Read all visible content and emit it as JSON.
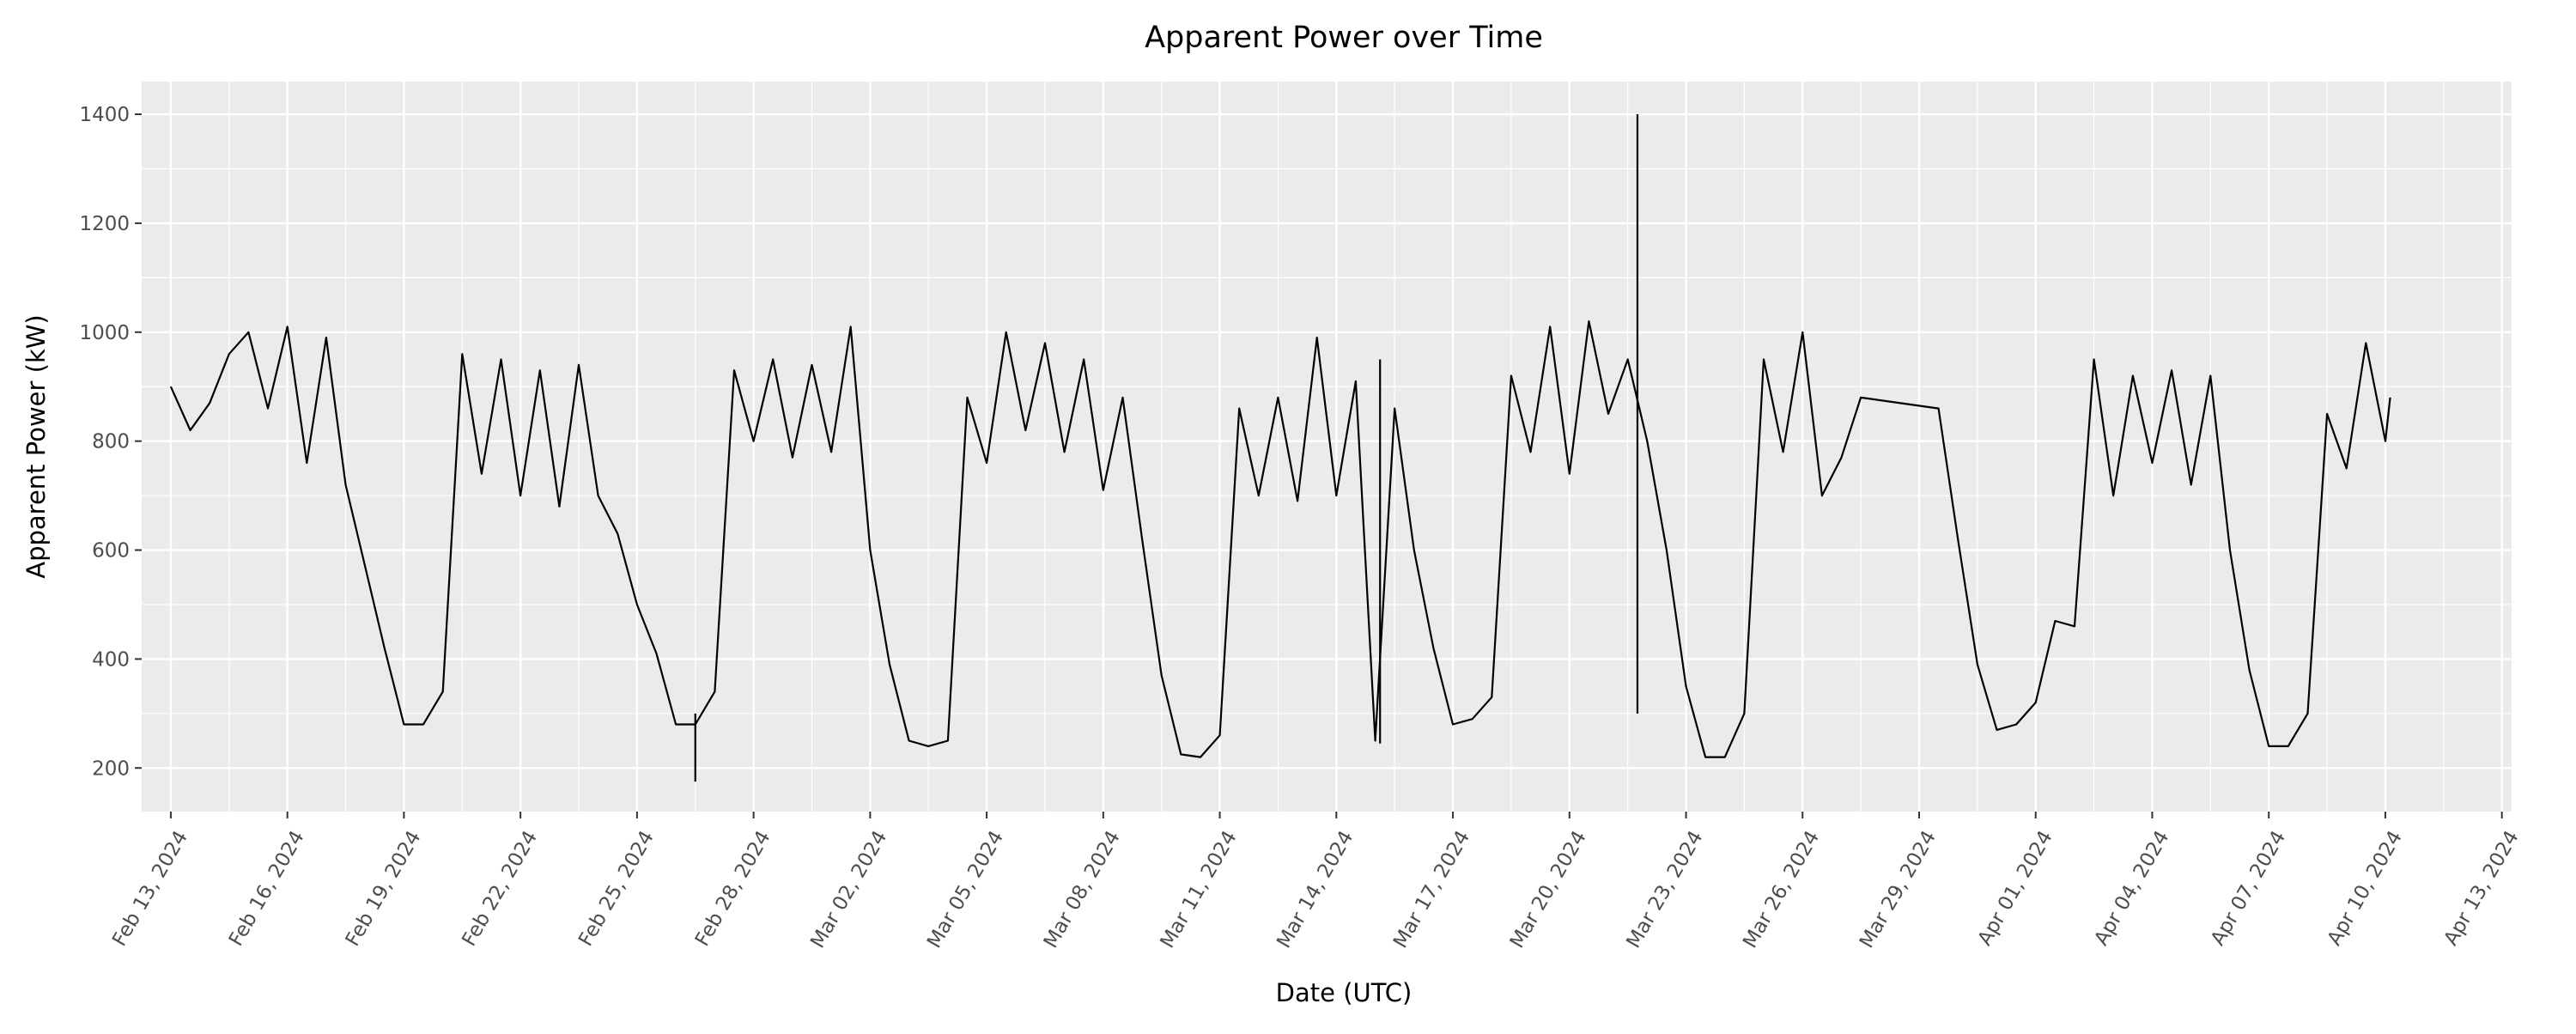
{
  "chart_data": {
    "type": "line",
    "title": "Apparent Power over Time",
    "xlabel": "Date (UTC)",
    "ylabel": "Apparent Power (kW)",
    "x_type": "date",
    "xlim": [
      "2024-02-12T06:00:00Z",
      "2024-04-13T06:00:00Z"
    ],
    "ylim": [
      120,
      1460
    ],
    "x_ticks": [
      {
        "date": "2024-02-13",
        "label": "Feb 13, 2024"
      },
      {
        "date": "2024-02-16",
        "label": "Feb 16, 2024"
      },
      {
        "date": "2024-02-19",
        "label": "Feb 19, 2024"
      },
      {
        "date": "2024-02-22",
        "label": "Feb 22, 2024"
      },
      {
        "date": "2024-02-25",
        "label": "Feb 25, 2024"
      },
      {
        "date": "2024-02-28",
        "label": "Feb 28, 2024"
      },
      {
        "date": "2024-03-02",
        "label": "Mar 02, 2024"
      },
      {
        "date": "2024-03-05",
        "label": "Mar 05, 2024"
      },
      {
        "date": "2024-03-08",
        "label": "Mar 08, 2024"
      },
      {
        "date": "2024-03-11",
        "label": "Mar 11, 2024"
      },
      {
        "date": "2024-03-14",
        "label": "Mar 14, 2024"
      },
      {
        "date": "2024-03-17",
        "label": "Mar 17, 2024"
      },
      {
        "date": "2024-03-20",
        "label": "Mar 20, 2024"
      },
      {
        "date": "2024-03-23",
        "label": "Mar 23, 2024"
      },
      {
        "date": "2024-03-26",
        "label": "Mar 26, 2024"
      },
      {
        "date": "2024-03-29",
        "label": "Mar 29, 2024"
      },
      {
        "date": "2024-04-01",
        "label": "Apr 01, 2024"
      },
      {
        "date": "2024-04-04",
        "label": "Apr 04, 2024"
      },
      {
        "date": "2024-04-07",
        "label": "Apr 07, 2024"
      },
      {
        "date": "2024-04-10",
        "label": "Apr 10, 2024"
      },
      {
        "date": "2024-04-13",
        "label": "Apr 13, 2024"
      }
    ],
    "y_ticks": [
      200,
      400,
      600,
      800,
      1000,
      1200,
      1400
    ],
    "grid": true,
    "legend": "none",
    "line_color": "#000000",
    "panel_background": "#ebebeb",
    "grid_color": "#ffffff",
    "series": [
      {
        "x": [
          "2024-02-13T00:00:00Z",
          "2024-02-13T12:00:00Z",
          "2024-02-14T00:00:00Z",
          "2024-02-14T12:00:00Z",
          "2024-02-15T00:00:00Z",
          "2024-02-15T12:00:00Z",
          "2024-02-16T00:00:00Z",
          "2024-02-16T12:00:00Z",
          "2024-02-17T00:00:00Z",
          "2024-02-17T12:00:00Z",
          "2024-02-18T00:00:00Z",
          "2024-02-18T12:00:00Z",
          "2024-02-19T00:00:00Z",
          "2024-02-19T12:00:00Z",
          "2024-02-20T00:00:00Z",
          "2024-02-20T12:00:00Z",
          "2024-02-21T00:00:00Z",
          "2024-02-21T12:00:00Z",
          "2024-02-22T00:00:00Z",
          "2024-02-22T12:00:00Z",
          "2024-02-23T00:00:00Z",
          "2024-02-23T12:00:00Z",
          "2024-02-24T00:00:00Z",
          "2024-02-24T12:00:00Z",
          "2024-02-25T00:00:00Z",
          "2024-02-25T12:00:00Z",
          "2024-02-26T00:00:00Z",
          "2024-02-26T12:00:00Z",
          "2024-02-27T00:00:00Z",
          "2024-02-27T12:00:00Z",
          "2024-02-28T00:00:00Z",
          "2024-02-28T12:00:00Z",
          "2024-02-29T00:00:00Z",
          "2024-02-29T12:00:00Z",
          "2024-03-01T00:00:00Z",
          "2024-03-01T12:00:00Z",
          "2024-03-02T00:00:00Z",
          "2024-03-02T12:00:00Z",
          "2024-03-03T00:00:00Z",
          "2024-03-03T12:00:00Z",
          "2024-03-04T00:00:00Z",
          "2024-03-04T12:00:00Z",
          "2024-03-05T00:00:00Z",
          "2024-03-05T12:00:00Z",
          "2024-03-06T00:00:00Z",
          "2024-03-06T12:00:00Z",
          "2024-03-07T00:00:00Z",
          "2024-03-07T12:00:00Z",
          "2024-03-08T00:00:00Z",
          "2024-03-08T12:00:00Z",
          "2024-03-09T00:00:00Z",
          "2024-03-09T12:00:00Z",
          "2024-03-10T00:00:00Z",
          "2024-03-10T12:00:00Z",
          "2024-03-11T00:00:00Z",
          "2024-03-11T12:00:00Z",
          "2024-03-12T00:00:00Z",
          "2024-03-12T12:00:00Z",
          "2024-03-13T00:00:00Z",
          "2024-03-13T12:00:00Z",
          "2024-03-14T00:00:00Z",
          "2024-03-14T12:00:00Z",
          "2024-03-15T00:00:00Z",
          "2024-03-15T12:00:00Z",
          "2024-03-16T00:00:00Z",
          "2024-03-16T12:00:00Z",
          "2024-03-17T00:00:00Z",
          "2024-03-17T12:00:00Z",
          "2024-03-18T00:00:00Z",
          "2024-03-18T12:00:00Z",
          "2024-03-19T00:00:00Z",
          "2024-03-19T12:00:00Z",
          "2024-03-20T00:00:00Z",
          "2024-03-20T12:00:00Z",
          "2024-03-21T00:00:00Z",
          "2024-03-21T12:00:00Z",
          "2024-03-22T00:00:00Z",
          "2024-03-22T12:00:00Z",
          "2024-03-23T00:00:00Z",
          "2024-03-23T12:00:00Z",
          "2024-03-24T00:00:00Z",
          "2024-03-24T12:00:00Z",
          "2024-03-25T00:00:00Z",
          "2024-03-25T12:00:00Z",
          "2024-03-26T00:00:00Z",
          "2024-03-26T12:00:00Z",
          "2024-03-27T00:00:00Z",
          "2024-03-27T12:00:00Z",
          "2024-03-29T12:00:00Z",
          "2024-03-30T00:00:00Z",
          "2024-03-30T12:00:00Z",
          "2024-03-31T00:00:00Z",
          "2024-03-31T12:00:00Z",
          "2024-04-01T00:00:00Z",
          "2024-04-01T12:00:00Z",
          "2024-04-02T00:00:00Z",
          "2024-04-02T12:00:00Z",
          "2024-04-03T00:00:00Z",
          "2024-04-03T12:00:00Z",
          "2024-04-04T00:00:00Z",
          "2024-04-04T12:00:00Z",
          "2024-04-05T00:00:00Z",
          "2024-04-05T12:00:00Z",
          "2024-04-06T00:00:00Z",
          "2024-04-06T12:00:00Z",
          "2024-04-07T00:00:00Z",
          "2024-04-07T12:00:00Z",
          "2024-04-08T00:00:00Z",
          "2024-04-08T12:00:00Z",
          "2024-04-09T00:00:00Z",
          "2024-04-09T12:00:00Z",
          "2024-04-10T00:00:00Z",
          "2024-04-10T03:00:00Z"
        ],
        "values": [
          900,
          820,
          870,
          960,
          1000,
          860,
          1010,
          760,
          990,
          720,
          570,
          420,
          280,
          280,
          340,
          960,
          740,
          950,
          700,
          930,
          680,
          940,
          700,
          630,
          500,
          410,
          280,
          280,
          340,
          930,
          800,
          950,
          770,
          940,
          780,
          1010,
          600,
          390,
          250,
          240,
          250,
          880,
          760,
          1000,
          820,
          980,
          780,
          950,
          710,
          880,
          620,
          370,
          225,
          220,
          260,
          860,
          700,
          880,
          690,
          990,
          700,
          910,
          250,
          860,
          600,
          420,
          280,
          290,
          330,
          920,
          780,
          1010,
          740,
          1020,
          850,
          950,
          800,
          600,
          350,
          220,
          220,
          300,
          950,
          780,
          1000,
          700,
          770,
          880,
          860,
          620,
          390,
          270,
          280,
          320,
          470,
          460,
          950,
          700,
          920,
          760,
          930,
          720,
          920,
          600,
          380,
          240,
          240,
          300,
          850,
          750,
          980,
          800,
          880
        ]
      }
    ],
    "spikes": [
      {
        "date": "2024-02-26T12:00:00Z",
        "min": 175,
        "max": 300
      },
      {
        "date": "2024-03-15T03:00:00Z",
        "min": 245,
        "max": 950
      },
      {
        "date": "2024-03-21T18:00:00Z",
        "min": 300,
        "max": 1400
      }
    ]
  }
}
